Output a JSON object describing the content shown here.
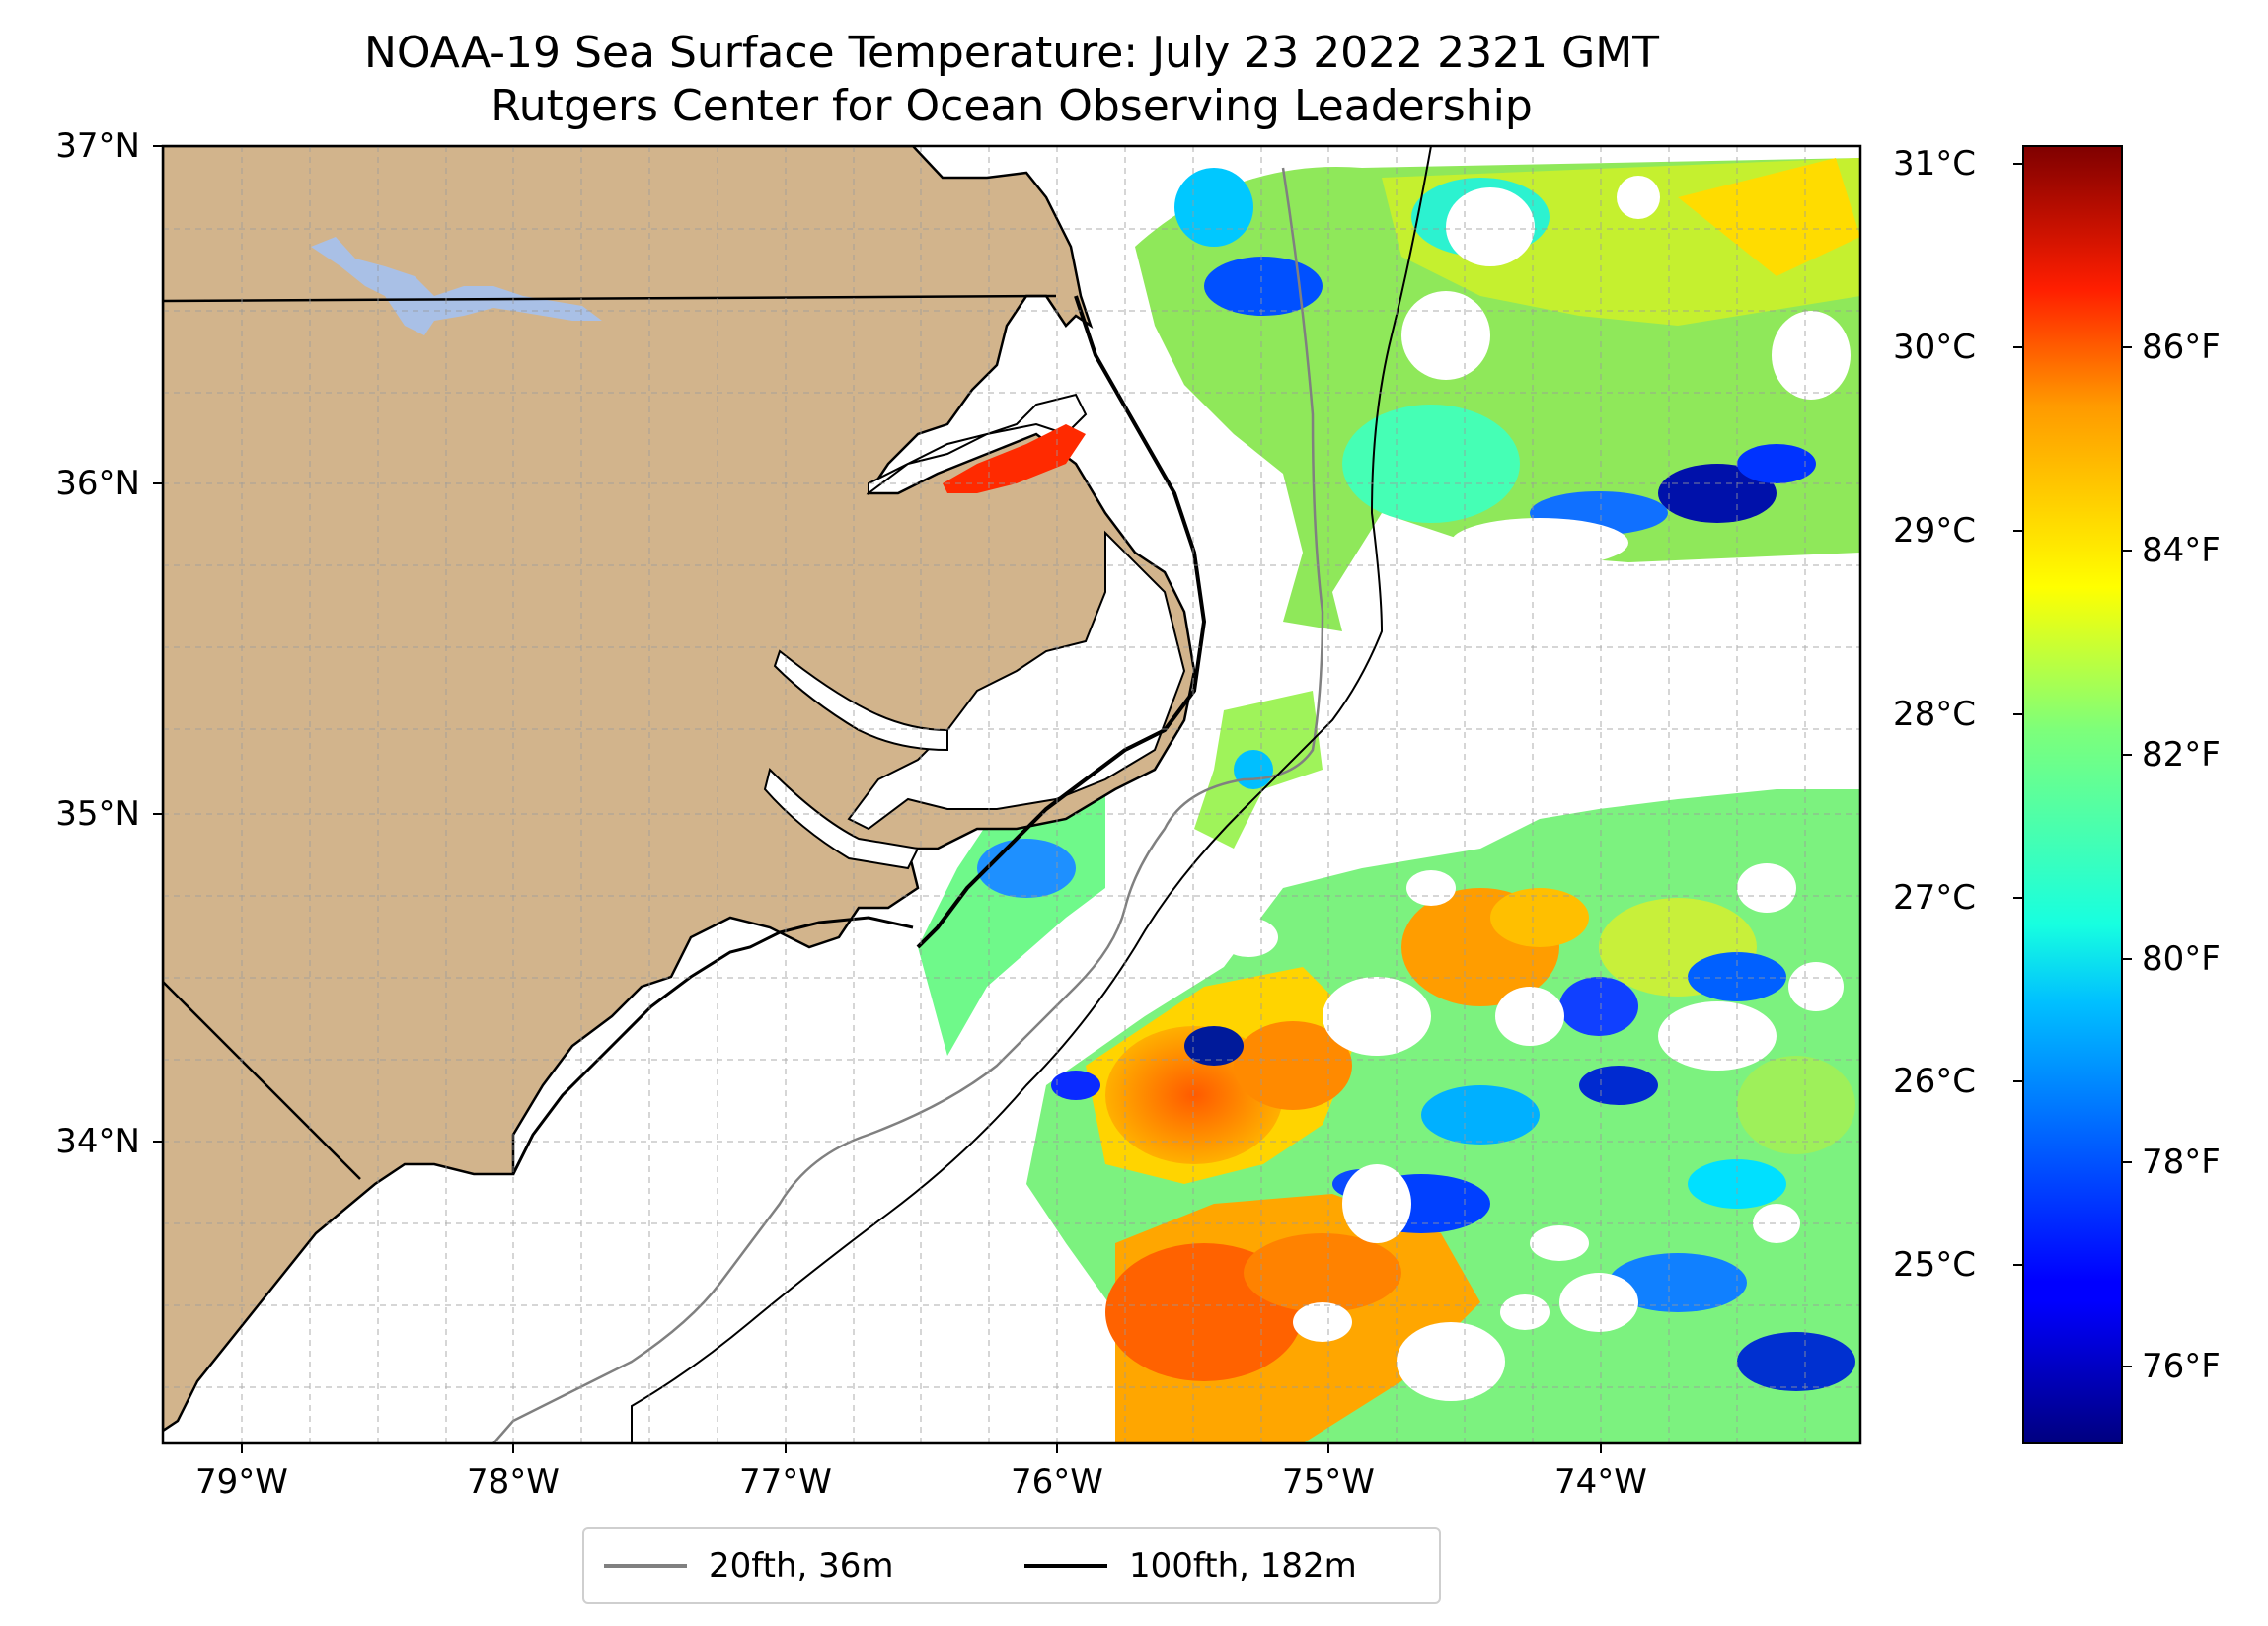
{
  "title": {
    "line1": "NOAA-19 Sea Surface Temperature: July 23 2022 2321 GMT",
    "line2": "Rutgers Center for Ocean Observing Leadership"
  },
  "map": {
    "lat_labels": [
      "37°N",
      "36°N",
      "35°N",
      "34°N"
    ],
    "lon_labels": [
      "79°W",
      "78°W",
      "77°W",
      "76°W",
      "75°W",
      "74°W"
    ],
    "land_color": "#d2b48c",
    "lake_color": "#a9c0e6",
    "grid": true
  },
  "colorbar": {
    "colormap": "jet",
    "celsius_labels": [
      "31°C",
      "30°C",
      "29°C",
      "28°C",
      "27°C",
      "26°C",
      "25°C"
    ],
    "fahrenheit_labels": [
      "86°F",
      "84°F",
      "82°F",
      "80°F",
      "78°F",
      "76°F"
    ]
  },
  "legend": {
    "items": [
      {
        "label": "20fth, 36m",
        "color": "#808080"
      },
      {
        "label": "100fth, 182m",
        "color": "#000000"
      }
    ]
  }
}
